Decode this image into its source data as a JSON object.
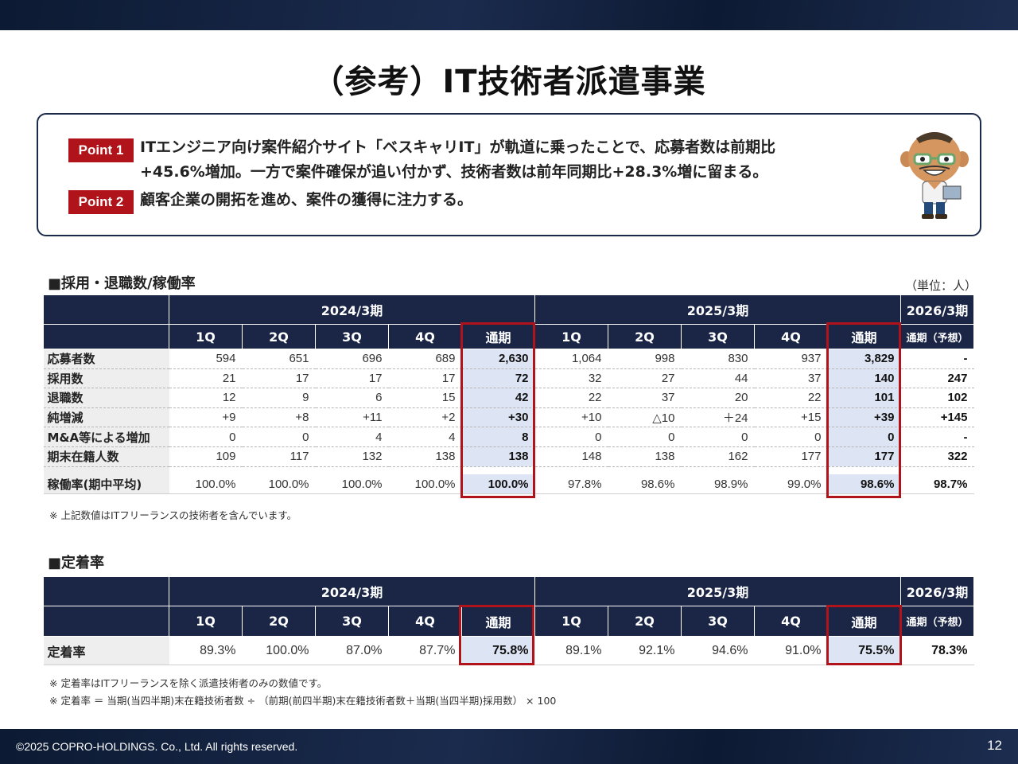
{
  "header": {
    "title": "（参考）IT技術者派遣事業"
  },
  "points": [
    {
      "badge": "Point 1",
      "line1": "ITエンジニア向け案件紹介サイト「ベスキャリIT」が軌道に乗ったことで、応募者数は前期比",
      "line2": "+45.6%増加。一方で案件確保が追い付かず、技術者数は前年同期比+28.3%増に留まる。"
    },
    {
      "badge": "Point 2",
      "line1": "顧客企業の開拓を進め、案件の獲得に注力する。"
    }
  ],
  "hiring": {
    "section_title": "■採用・退職数/稼働率",
    "unit": "（単位：人）",
    "periods": [
      "2024/3期",
      "2025/3期",
      "2026/3期"
    ],
    "columns": [
      "1Q",
      "2Q",
      "3Q",
      "4Q",
      "通期",
      "1Q",
      "2Q",
      "3Q",
      "4Q",
      "通期",
      "通期（予想）"
    ],
    "rows": [
      {
        "label": "応募者数",
        "values": [
          "594",
          "651",
          "696",
          "689",
          "2,630",
          "1,064",
          "998",
          "830",
          "937",
          "3,829",
          "-"
        ]
      },
      {
        "label": "採用数",
        "values": [
          "21",
          "17",
          "17",
          "17",
          "72",
          "32",
          "27",
          "44",
          "37",
          "140",
          "247"
        ]
      },
      {
        "label": "退職数",
        "values": [
          "12",
          "9",
          "6",
          "15",
          "42",
          "22",
          "37",
          "20",
          "22",
          "101",
          "102"
        ]
      },
      {
        "label": "純増減",
        "values": [
          "+9",
          "+8",
          "+11",
          "+2",
          "+30",
          "+10",
          "△10",
          "＋24",
          "+15",
          "+39",
          "+145"
        ]
      },
      {
        "label": "M&A等による増加",
        "values": [
          "0",
          "0",
          "4",
          "4",
          "8",
          "0",
          "0",
          "0",
          "0",
          "0",
          "-"
        ]
      },
      {
        "label": "期末在籍人数",
        "values": [
          "109",
          "117",
          "132",
          "138",
          "138",
          "148",
          "138",
          "162",
          "177",
          "177",
          "322"
        ]
      },
      {
        "label": "稼働率(期中平均)",
        "values": [
          "100.0%",
          "100.0%",
          "100.0%",
          "100.0%",
          "100.0%",
          "97.8%",
          "98.6%",
          "98.9%",
          "99.0%",
          "98.6%",
          "98.7%"
        ]
      }
    ],
    "note": "※ 上記数値はITフリーランスの技術者を含んでいます。"
  },
  "retention": {
    "section_title": "■定着率",
    "periods": [
      "2024/3期",
      "2025/3期",
      "2026/3期"
    ],
    "columns": [
      "1Q",
      "2Q",
      "3Q",
      "4Q",
      "通期",
      "1Q",
      "2Q",
      "3Q",
      "4Q",
      "通期",
      "通期（予想）"
    ],
    "rows": [
      {
        "label": "定着率",
        "values": [
          "89.3%",
          "100.0%",
          "87.0%",
          "87.7%",
          "75.8%",
          "89.1%",
          "92.1%",
          "94.6%",
          "91.0%",
          "75.5%",
          "78.3%"
        ]
      }
    ],
    "notes": [
      "※ 定着率はITフリーランスを除く派遣技術者のみの数値です。",
      "※ 定着率 ＝ 当期(当四半期)末在籍技術者数 ÷ （前期(前四半期)末在籍技術者数＋当期(当四半期)採用数） × 100"
    ]
  },
  "footer": {
    "copyright": "©2025 COPRO-HOLDINGS. Co., Ltd. All rights reserved.",
    "page": "12"
  },
  "colors": {
    "navy": "#1b2647",
    "accent_red": "#b01319",
    "total_fill": "#dde4f4"
  }
}
